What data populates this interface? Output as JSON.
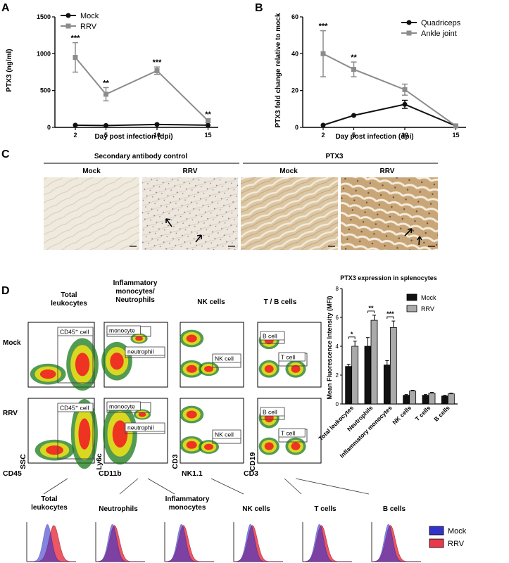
{
  "panels": {
    "A": "A",
    "B": "B",
    "C": "C",
    "D": "D"
  },
  "colors": {
    "mock": "#111111",
    "rrv": "#8c8c8c",
    "hist_mock": "#3333cc",
    "hist_rrv": "#e83a4a",
    "tissue_light": "#eee8dc",
    "tissue_ptx3": "#d9c3a0"
  },
  "chart_data": [
    {
      "type": "line",
      "panel": "A",
      "x": [
        2,
        5,
        10,
        15
      ],
      "xlabel": "Day post infection (dpi)",
      "ylabel": "PTX3 (ng/ml)",
      "ylim": [
        0,
        1500
      ],
      "yticks": [
        "0",
        "500",
        "1000",
        "1500"
      ],
      "series": [
        {
          "name": "Mock",
          "values": [
            30,
            25,
            40,
            30
          ],
          "err": [
            8,
            8,
            10,
            8
          ],
          "color": "#111111",
          "marker": "circle"
        },
        {
          "name": "RRV",
          "values": [
            950,
            450,
            770,
            90
          ],
          "err": [
            200,
            90,
            50,
            25
          ],
          "color": "#8c8c8c",
          "marker": "square"
        }
      ],
      "significance": [
        "***",
        "**",
        "***",
        "**"
      ],
      "legend": "top-left"
    },
    {
      "type": "line",
      "panel": "B",
      "x": [
        2,
        5,
        10,
        15
      ],
      "xlabel": "Day post infection (dpi)",
      "ylabel": "PTX3 fold change relative to mock",
      "ylim": [
        0,
        60
      ],
      "yticks": [
        "0",
        "20",
        "40",
        "60"
      ],
      "series": [
        {
          "name": "Quadriceps",
          "values": [
            1.2,
            6.5,
            12.5,
            0.8
          ],
          "err": [
            0.3,
            0.5,
            2.2,
            0.2
          ],
          "color": "#111111",
          "marker": "circle"
        },
        {
          "name": "Ankle joint",
          "values": [
            40,
            31.5,
            20.5,
            0.8
          ],
          "err": [
            12.5,
            4,
            3,
            0.2
          ],
          "color": "#8c8c8c",
          "marker": "square"
        }
      ],
      "significance": [
        "***",
        "**",
        "",
        ""
      ],
      "legend": "top-right"
    },
    {
      "type": "bar",
      "panel": "D-bar",
      "title": "PTX3 expression in splenocytes",
      "ylabel": "Mean Fluorescence Intensity (MFI)",
      "ylim": [
        0,
        8
      ],
      "yticks": [
        "0",
        "2",
        "4",
        "6",
        "8"
      ],
      "categories": [
        "Total leukocytes",
        "Neutrophils",
        "Inflammatory monocytes",
        "NK cells",
        "T cells",
        "B cells"
      ],
      "series": [
        {
          "name": "Mock",
          "values": [
            2.6,
            4.0,
            2.7,
            0.6,
            0.6,
            0.55
          ],
          "err": [
            0.15,
            0.6,
            0.3,
            0.05,
            0.05,
            0.05
          ],
          "color": "#111111"
        },
        {
          "name": "RRV",
          "values": [
            4.0,
            5.8,
            5.3,
            0.9,
            0.75,
            0.7
          ],
          "err": [
            0.35,
            0.35,
            0.45,
            0.05,
            0.05,
            0.05
          ],
          "color": "#aaaaaa"
        }
      ],
      "significance": [
        "*",
        "**",
        "***",
        "",
        "",
        ""
      ],
      "legend": "top-right"
    }
  ],
  "panelC": {
    "header_left": "Secondary antibody control",
    "header_right": "PTX3",
    "columns": [
      "Mock",
      "RRV",
      "Mock",
      "RRV"
    ]
  },
  "panelD": {
    "populations": [
      "Total\nleukocytes",
      "Inflammatory\nmonocytes/\nNeutrophils",
      "NK cells",
      "T / B cells"
    ],
    "pop_titles": [
      "Total leukocytes",
      "Inflammatory monocytes/ Neutrophils",
      "NK cells",
      "T / B cells"
    ],
    "row_labels": [
      "Mock",
      "RRV"
    ],
    "y_axis_labels": [
      "SSC",
      "Ly6c",
      "CD3",
      "CD19"
    ],
    "x_axis_labels": [
      "CD45",
      "CD11b",
      "NK1.1",
      "CD3"
    ],
    "gates": {
      "leuk": "CD45⁺ cell",
      "monocyte": "monocyte",
      "neutrophil": "neutrophil",
      "nk": "NK cell",
      "b": "B cell",
      "t": "T cell"
    },
    "histograms": [
      "Total\nleukocytes",
      "Neutrophils",
      "Inflammatory\nmonocytes",
      "NK cells",
      "T cells",
      "B cells"
    ],
    "hist_legend": [
      "Mock",
      "RRV"
    ]
  }
}
